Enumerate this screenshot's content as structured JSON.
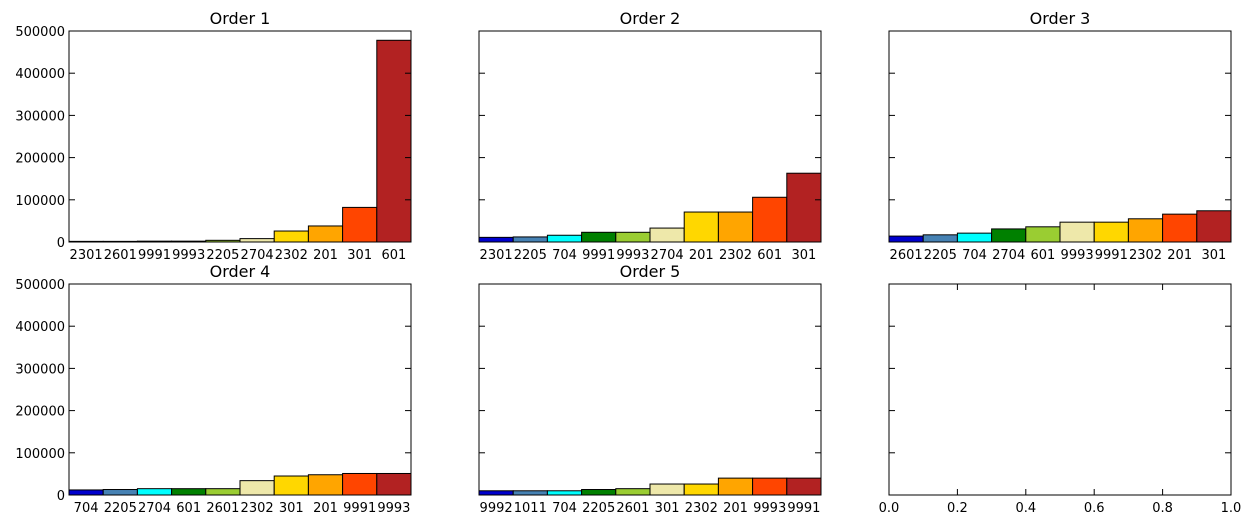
{
  "colors": [
    "#0000cd",
    "#4682b4",
    "#00ffff",
    "#008000",
    "#9acd32",
    "#eee8aa",
    "#ffd700",
    "#ffa500",
    "#ff4500",
    "#b22222"
  ],
  "chart_data": [
    {
      "type": "bar",
      "title": "Order 1",
      "categories": [
        "2301",
        "2601",
        "9991",
        "9993",
        "2205",
        "2704",
        "2302",
        "201",
        "301",
        "601"
      ],
      "values": [
        1500,
        1500,
        2000,
        2000,
        4000,
        8000,
        26000,
        38000,
        82000,
        478000
      ],
      "ylim": [
        0,
        500000
      ],
      "yticks": [
        "0",
        "100000",
        "200000",
        "300000",
        "400000",
        "500000"
      ]
    },
    {
      "type": "bar",
      "title": "Order 2",
      "categories": [
        "2301",
        "2205",
        "704",
        "9991",
        "9993",
        "2704",
        "201",
        "2302",
        "601",
        "301"
      ],
      "values": [
        11000,
        12000,
        16000,
        23000,
        23000,
        33000,
        71000,
        71000,
        106000,
        163000
      ],
      "ylim": [
        0,
        500000
      ]
    },
    {
      "type": "bar",
      "title": "Order 3",
      "categories": [
        "2601",
        "2205",
        "704",
        "2704",
        "601",
        "9993",
        "9991",
        "2302",
        "201",
        "301"
      ],
      "values": [
        14000,
        17000,
        21000,
        31000,
        36000,
        47000,
        47000,
        55000,
        66000,
        74000
      ],
      "ylim": [
        0,
        500000
      ]
    },
    {
      "type": "bar",
      "title": "Order 4",
      "categories": [
        "704",
        "2205",
        "2704",
        "601",
        "2601",
        "2302",
        "301",
        "201",
        "9991",
        "9993"
      ],
      "values": [
        12000,
        13000,
        15000,
        15000,
        15000,
        34000,
        45000,
        48000,
        51000,
        51000
      ],
      "ylim": [
        0,
        500000
      ],
      "yticks": [
        "0",
        "100000",
        "200000",
        "300000",
        "400000",
        "500000"
      ]
    },
    {
      "type": "bar",
      "title": "Order 5",
      "categories": [
        "9992",
        "1011",
        "704",
        "2205",
        "2601",
        "301",
        "2302",
        "201",
        "9993",
        "9991"
      ],
      "values": [
        10000,
        10000,
        10000,
        13000,
        15000,
        26000,
        26000,
        40000,
        40000,
        40000
      ],
      "ylim": [
        0,
        500000
      ]
    },
    {
      "type": "bar",
      "title": "",
      "categories": [],
      "values": [],
      "xlim": [
        0,
        1
      ],
      "xticks": [
        "0.0",
        "0.2",
        "0.4",
        "0.6",
        "0.8",
        "1.0"
      ]
    }
  ]
}
